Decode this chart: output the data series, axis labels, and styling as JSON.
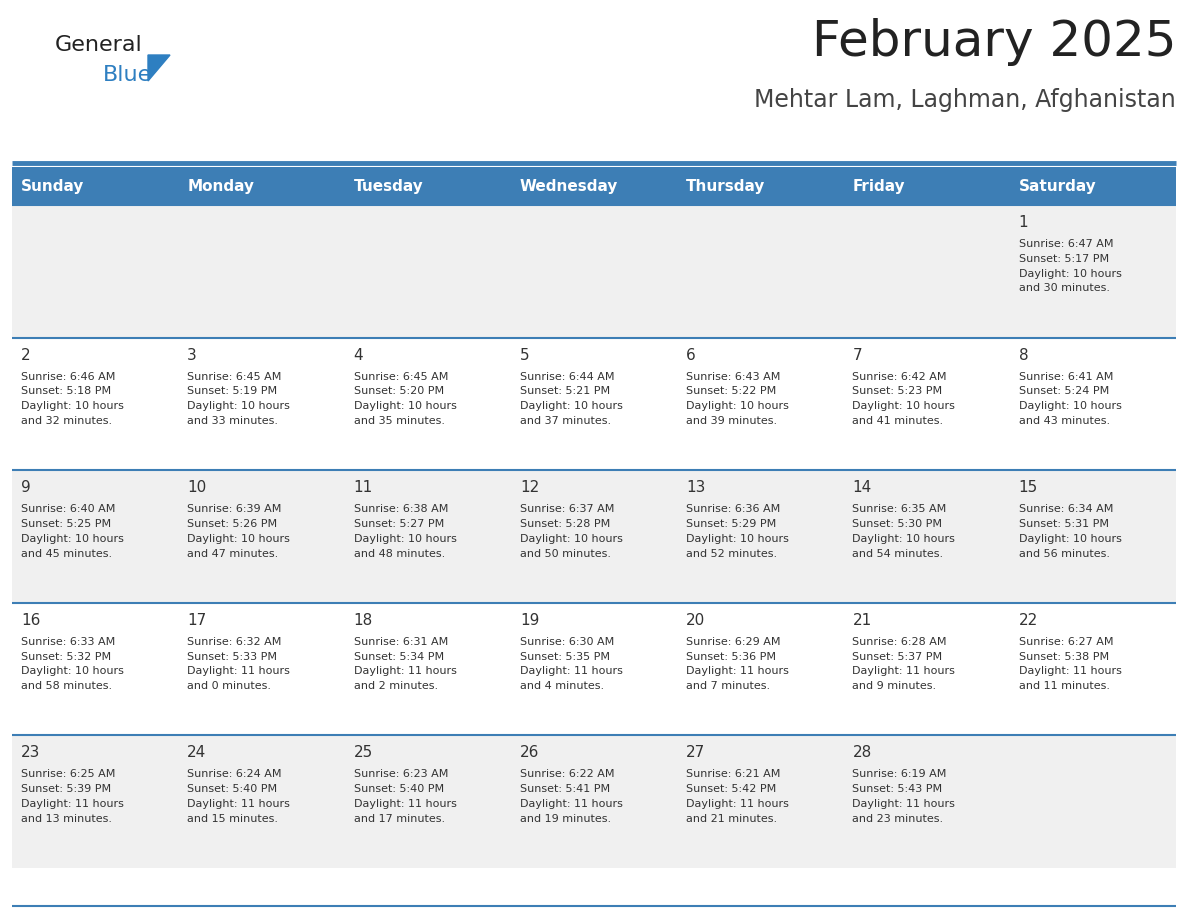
{
  "title": "February 2025",
  "subtitle": "Mehtar Lam, Laghman, Afghanistan",
  "days_of_week": [
    "Sunday",
    "Monday",
    "Tuesday",
    "Wednesday",
    "Thursday",
    "Friday",
    "Saturday"
  ],
  "header_bg": "#3D7EB5",
  "header_text": "#FFFFFF",
  "row_bg_odd": "#F0F0F0",
  "row_bg_even": "#FFFFFF",
  "cell_border": "#3D7EB5",
  "day_num_color": "#333333",
  "info_text_color": "#333333",
  "title_color": "#222222",
  "subtitle_color": "#444444",
  "logo_general_color": "#222222",
  "logo_blue_color": "#2E7FC1",
  "weeks": [
    [
      {
        "day": null,
        "info": null
      },
      {
        "day": null,
        "info": null
      },
      {
        "day": null,
        "info": null
      },
      {
        "day": null,
        "info": null
      },
      {
        "day": null,
        "info": null
      },
      {
        "day": null,
        "info": null
      },
      {
        "day": 1,
        "info": "Sunrise: 6:47 AM\nSunset: 5:17 PM\nDaylight: 10 hours\nand 30 minutes."
      }
    ],
    [
      {
        "day": 2,
        "info": "Sunrise: 6:46 AM\nSunset: 5:18 PM\nDaylight: 10 hours\nand 32 minutes."
      },
      {
        "day": 3,
        "info": "Sunrise: 6:45 AM\nSunset: 5:19 PM\nDaylight: 10 hours\nand 33 minutes."
      },
      {
        "day": 4,
        "info": "Sunrise: 6:45 AM\nSunset: 5:20 PM\nDaylight: 10 hours\nand 35 minutes."
      },
      {
        "day": 5,
        "info": "Sunrise: 6:44 AM\nSunset: 5:21 PM\nDaylight: 10 hours\nand 37 minutes."
      },
      {
        "day": 6,
        "info": "Sunrise: 6:43 AM\nSunset: 5:22 PM\nDaylight: 10 hours\nand 39 minutes."
      },
      {
        "day": 7,
        "info": "Sunrise: 6:42 AM\nSunset: 5:23 PM\nDaylight: 10 hours\nand 41 minutes."
      },
      {
        "day": 8,
        "info": "Sunrise: 6:41 AM\nSunset: 5:24 PM\nDaylight: 10 hours\nand 43 minutes."
      }
    ],
    [
      {
        "day": 9,
        "info": "Sunrise: 6:40 AM\nSunset: 5:25 PM\nDaylight: 10 hours\nand 45 minutes."
      },
      {
        "day": 10,
        "info": "Sunrise: 6:39 AM\nSunset: 5:26 PM\nDaylight: 10 hours\nand 47 minutes."
      },
      {
        "day": 11,
        "info": "Sunrise: 6:38 AM\nSunset: 5:27 PM\nDaylight: 10 hours\nand 48 minutes."
      },
      {
        "day": 12,
        "info": "Sunrise: 6:37 AM\nSunset: 5:28 PM\nDaylight: 10 hours\nand 50 minutes."
      },
      {
        "day": 13,
        "info": "Sunrise: 6:36 AM\nSunset: 5:29 PM\nDaylight: 10 hours\nand 52 minutes."
      },
      {
        "day": 14,
        "info": "Sunrise: 6:35 AM\nSunset: 5:30 PM\nDaylight: 10 hours\nand 54 minutes."
      },
      {
        "day": 15,
        "info": "Sunrise: 6:34 AM\nSunset: 5:31 PM\nDaylight: 10 hours\nand 56 minutes."
      }
    ],
    [
      {
        "day": 16,
        "info": "Sunrise: 6:33 AM\nSunset: 5:32 PM\nDaylight: 10 hours\nand 58 minutes."
      },
      {
        "day": 17,
        "info": "Sunrise: 6:32 AM\nSunset: 5:33 PM\nDaylight: 11 hours\nand 0 minutes."
      },
      {
        "day": 18,
        "info": "Sunrise: 6:31 AM\nSunset: 5:34 PM\nDaylight: 11 hours\nand 2 minutes."
      },
      {
        "day": 19,
        "info": "Sunrise: 6:30 AM\nSunset: 5:35 PM\nDaylight: 11 hours\nand 4 minutes."
      },
      {
        "day": 20,
        "info": "Sunrise: 6:29 AM\nSunset: 5:36 PM\nDaylight: 11 hours\nand 7 minutes."
      },
      {
        "day": 21,
        "info": "Sunrise: 6:28 AM\nSunset: 5:37 PM\nDaylight: 11 hours\nand 9 minutes."
      },
      {
        "day": 22,
        "info": "Sunrise: 6:27 AM\nSunset: 5:38 PM\nDaylight: 11 hours\nand 11 minutes."
      }
    ],
    [
      {
        "day": 23,
        "info": "Sunrise: 6:25 AM\nSunset: 5:39 PM\nDaylight: 11 hours\nand 13 minutes."
      },
      {
        "day": 24,
        "info": "Sunrise: 6:24 AM\nSunset: 5:40 PM\nDaylight: 11 hours\nand 15 minutes."
      },
      {
        "day": 25,
        "info": "Sunrise: 6:23 AM\nSunset: 5:40 PM\nDaylight: 11 hours\nand 17 minutes."
      },
      {
        "day": 26,
        "info": "Sunrise: 6:22 AM\nSunset: 5:41 PM\nDaylight: 11 hours\nand 19 minutes."
      },
      {
        "day": 27,
        "info": "Sunrise: 6:21 AM\nSunset: 5:42 PM\nDaylight: 11 hours\nand 21 minutes."
      },
      {
        "day": 28,
        "info": "Sunrise: 6:19 AM\nSunset: 5:43 PM\nDaylight: 11 hours\nand 23 minutes."
      },
      {
        "day": null,
        "info": null
      }
    ]
  ]
}
